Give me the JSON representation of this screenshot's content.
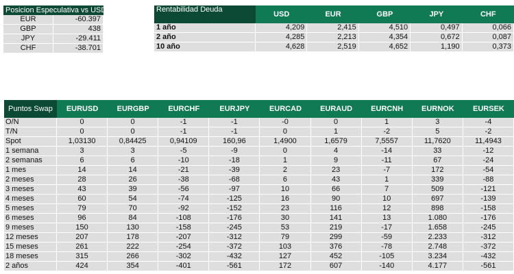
{
  "posicion": {
    "title": "Posicion Especulativa vs USD",
    "rows": [
      {
        "label": "EUR",
        "value": "-60.397"
      },
      {
        "label": "GBP",
        "value": "438"
      },
      {
        "label": "JPY",
        "value": "-29.411"
      },
      {
        "label": "CHF",
        "value": "-38.701"
      }
    ]
  },
  "rentabilidad": {
    "title": "Rentabilidad Deuda",
    "columns": [
      "USD",
      "EUR",
      "GBP",
      "JPY",
      "CHF"
    ],
    "rows": [
      {
        "label": "1 año",
        "values": [
          "4,209",
          "2,415",
          "4,510",
          "0,497",
          "0,066"
        ]
      },
      {
        "label": "2 año",
        "values": [
          "4,285",
          "2,213",
          "4,354",
          "0,672",
          "0,087"
        ]
      },
      {
        "label": "10 año",
        "values": [
          "4,628",
          "2,519",
          "4,652",
          "1,190",
          "0,373"
        ]
      }
    ]
  },
  "swap": {
    "title": "Puntos Swap",
    "columns": [
      "EURUSD",
      "EURGBP",
      "EURCHF",
      "EURJPY",
      "EURCAD",
      "EURAUD",
      "EURCNH",
      "EURNOK",
      "EURSEK"
    ],
    "rows": [
      {
        "label": "O/N",
        "values": [
          "0",
          "0",
          "-1",
          "-1",
          "-0",
          "0",
          "1",
          "3",
          "-4"
        ]
      },
      {
        "label": "T/N",
        "values": [
          "0",
          "0",
          "-1",
          "-1",
          "0",
          "1",
          "-2",
          "5",
          "-2"
        ]
      },
      {
        "label": "Spot",
        "values": [
          "1,03130",
          "0,84425",
          "0,94109",
          "160,96",
          "1,4900",
          "1,6579",
          "7,5557",
          "11,7620",
          "11,4943"
        ]
      },
      {
        "label": "1 semana",
        "values": [
          "3",
          "3",
          "-5",
          "-9",
          "0",
          "4",
          "-14",
          "33",
          "-12"
        ]
      },
      {
        "label": "2 semanas",
        "values": [
          "6",
          "6",
          "-10",
          "-18",
          "1",
          "9",
          "-11",
          "67",
          "-24"
        ]
      },
      {
        "label": "1 mes",
        "values": [
          "14",
          "14",
          "-21",
          "-39",
          "2",
          "23",
          "-7",
          "172",
          "-54"
        ]
      },
      {
        "label": "2 meses",
        "values": [
          "28",
          "26",
          "-38",
          "-68",
          "6",
          "43",
          "1",
          "339",
          "-88"
        ]
      },
      {
        "label": "3 meses",
        "values": [
          "43",
          "39",
          "-56",
          "-97",
          "10",
          "66",
          "7",
          "509",
          "-121"
        ]
      },
      {
        "label": "4 meses",
        "values": [
          "60",
          "54",
          "-74",
          "-125",
          "16",
          "90",
          "10",
          "697",
          "-139"
        ]
      },
      {
        "label": "5 meses",
        "values": [
          "79",
          "70",
          "-92",
          "-152",
          "23",
          "116",
          "12",
          "898",
          "-158"
        ]
      },
      {
        "label": "6 meses",
        "values": [
          "96",
          "84",
          "-108",
          "-176",
          "30",
          "141",
          "13",
          "1.080",
          "-176"
        ]
      },
      {
        "label": "9 meses",
        "values": [
          "150",
          "130",
          "-158",
          "-245",
          "53",
          "219",
          "-17",
          "1.658",
          "-245"
        ]
      },
      {
        "label": "12 meses",
        "values": [
          "207",
          "178",
          "-207",
          "-312",
          "79",
          "299",
          "-59",
          "2.233",
          "-312"
        ]
      },
      {
        "label": "15 meses",
        "values": [
          "261",
          "222",
          "-254",
          "-372",
          "103",
          "376",
          "-78",
          "2.748",
          "-372"
        ]
      },
      {
        "label": "18 meses",
        "values": [
          "315",
          "266",
          "-302",
          "-432",
          "127",
          "452",
          "-105",
          "3.234",
          "-432"
        ]
      },
      {
        "label": "2 años",
        "values": [
          "424",
          "354",
          "-401",
          "-561",
          "172",
          "607",
          "-140",
          "4.177",
          "-561"
        ]
      }
    ]
  }
}
